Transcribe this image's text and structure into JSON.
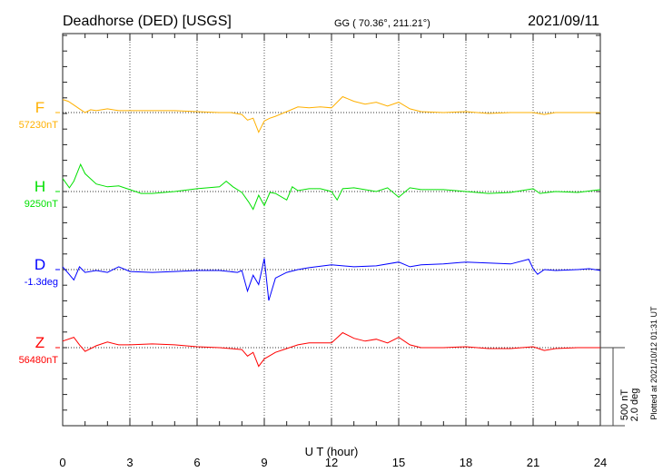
{
  "header": {
    "station": "Deadhorse (DED)  [USGS]",
    "coords": "GG ( 70.36°, 211.21°)",
    "date": "2021/09/11"
  },
  "footer": {
    "plotted": "Plotted at 2021/10/12 01:31  UT"
  },
  "chart_data": {
    "type": "line",
    "title": "Deadhorse (DED)  [USGS]",
    "xlabel": "U T (hour)",
    "xlim": [
      0,
      24
    ],
    "xticks": [
      "0",
      "3",
      "6",
      "9",
      "12",
      "15",
      "18",
      "21",
      "24"
    ],
    "grid": "vertical dotted every 3 hours",
    "scale": {
      "nT": "500 nT",
      "deg": "2.0 deg",
      "nT_value": 500
    },
    "series": [
      {
        "name": "F",
        "baseline_label": "57230nT",
        "color": "#ffb000",
        "points": [
          [
            0,
            84
          ],
          [
            0.25,
            72
          ],
          [
            0.5,
            48
          ],
          [
            0.75,
            24
          ],
          [
            1,
            0
          ],
          [
            1.25,
            18
          ],
          [
            1.5,
            12
          ],
          [
            2,
            24
          ],
          [
            2.5,
            12
          ],
          [
            3,
            12
          ],
          [
            3.5,
            12
          ],
          [
            4,
            12
          ],
          [
            5,
            12
          ],
          [
            6,
            6
          ],
          [
            7,
            0
          ],
          [
            7.5,
            0
          ],
          [
            8,
            -12
          ],
          [
            8.25,
            -48
          ],
          [
            8.5,
            -36
          ],
          [
            8.75,
            -126
          ],
          [
            9,
            -54
          ],
          [
            9.25,
            -36
          ],
          [
            9.5,
            -24
          ],
          [
            10,
            6
          ],
          [
            10.5,
            36
          ],
          [
            11,
            30
          ],
          [
            11.5,
            36
          ],
          [
            12,
            30
          ],
          [
            12.5,
            102
          ],
          [
            13,
            72
          ],
          [
            13.5,
            54
          ],
          [
            14,
            66
          ],
          [
            14.5,
            42
          ],
          [
            15,
            66
          ],
          [
            15.5,
            24
          ],
          [
            16,
            6
          ],
          [
            17,
            0
          ],
          [
            18,
            6
          ],
          [
            19,
            -6
          ],
          [
            20,
            0
          ],
          [
            21,
            0
          ],
          [
            21.5,
            -12
          ],
          [
            22,
            0
          ],
          [
            23,
            0
          ],
          [
            24,
            0
          ]
        ]
      },
      {
        "name": "H",
        "baseline_label": "9250nT",
        "color": "#00e000",
        "points": [
          [
            0,
            84
          ],
          [
            0.3,
            24
          ],
          [
            0.5,
            66
          ],
          [
            0.8,
            174
          ],
          [
            1,
            114
          ],
          [
            1.5,
            48
          ],
          [
            2,
            30
          ],
          [
            2.5,
            36
          ],
          [
            3,
            12
          ],
          [
            3.5,
            -12
          ],
          [
            4,
            -12
          ],
          [
            5,
            0
          ],
          [
            6,
            18
          ],
          [
            7,
            30
          ],
          [
            7.3,
            66
          ],
          [
            7.6,
            30
          ],
          [
            8,
            -6
          ],
          [
            8.3,
            -66
          ],
          [
            8.5,
            -114
          ],
          [
            8.75,
            -24
          ],
          [
            9,
            -90
          ],
          [
            9.25,
            -6
          ],
          [
            9.5,
            -12
          ],
          [
            10,
            -54
          ],
          [
            10.25,
            30
          ],
          [
            10.5,
            6
          ],
          [
            11,
            18
          ],
          [
            11.5,
            18
          ],
          [
            12,
            0
          ],
          [
            12.25,
            -54
          ],
          [
            12.5,
            18
          ],
          [
            13,
            24
          ],
          [
            14,
            0
          ],
          [
            14.5,
            24
          ],
          [
            15,
            -36
          ],
          [
            15.5,
            24
          ],
          [
            16,
            12
          ],
          [
            17,
            12
          ],
          [
            18,
            0
          ],
          [
            19,
            -12
          ],
          [
            20,
            -6
          ],
          [
            21,
            18
          ],
          [
            21.3,
            -12
          ],
          [
            22,
            0
          ],
          [
            23,
            -6
          ],
          [
            24,
            12
          ]
        ]
      },
      {
        "name": "D",
        "baseline_label": "-1.3deg",
        "color": "#0000ff",
        "points": [
          [
            0,
            18
          ],
          [
            0.25,
            -24
          ],
          [
            0.5,
            -66
          ],
          [
            0.75,
            18
          ],
          [
            1,
            -18
          ],
          [
            1.5,
            -6
          ],
          [
            2,
            -18
          ],
          [
            2.5,
            18
          ],
          [
            3,
            -12
          ],
          [
            4,
            -18
          ],
          [
            5,
            -12
          ],
          [
            6,
            -6
          ],
          [
            7,
            -6
          ],
          [
            7.8,
            -18
          ],
          [
            8,
            -6
          ],
          [
            8.25,
            -138
          ],
          [
            8.5,
            -36
          ],
          [
            8.75,
            -96
          ],
          [
            9,
            72
          ],
          [
            9.2,
            -198
          ],
          [
            9.5,
            -54
          ],
          [
            10,
            -18
          ],
          [
            10.5,
            0
          ],
          [
            11,
            12
          ],
          [
            12,
            30
          ],
          [
            13,
            18
          ],
          [
            14,
            24
          ],
          [
            15,
            48
          ],
          [
            15.5,
            18
          ],
          [
            16,
            30
          ],
          [
            17,
            36
          ],
          [
            18,
            48
          ],
          [
            19,
            42
          ],
          [
            20,
            36
          ],
          [
            20.8,
            66
          ],
          [
            21,
            6
          ],
          [
            21.2,
            -30
          ],
          [
            21.5,
            0
          ],
          [
            22,
            -6
          ],
          [
            23,
            0
          ],
          [
            23.5,
            6
          ],
          [
            24,
            -6
          ]
        ]
      },
      {
        "name": "Z",
        "baseline_label": "56480nT",
        "color": "#ff0000",
        "points": [
          [
            0,
            42
          ],
          [
            0.5,
            66
          ],
          [
            0.75,
            18
          ],
          [
            1,
            -24
          ],
          [
            1.5,
            12
          ],
          [
            2,
            36
          ],
          [
            2.5,
            18
          ],
          [
            3,
            18
          ],
          [
            4,
            24
          ],
          [
            5,
            18
          ],
          [
            6,
            6
          ],
          [
            7,
            0
          ],
          [
            8,
            -12
          ],
          [
            8.25,
            -54
          ],
          [
            8.5,
            -30
          ],
          [
            8.75,
            -120
          ],
          [
            9,
            -72
          ],
          [
            9.5,
            -30
          ],
          [
            10,
            -6
          ],
          [
            10.5,
            18
          ],
          [
            11,
            30
          ],
          [
            12,
            30
          ],
          [
            12.5,
            96
          ],
          [
            13,
            60
          ],
          [
            13.5,
            42
          ],
          [
            14,
            54
          ],
          [
            14.5,
            30
          ],
          [
            15,
            66
          ],
          [
            15.5,
            18
          ],
          [
            16,
            0
          ],
          [
            17,
            0
          ],
          [
            18,
            6
          ],
          [
            19,
            -6
          ],
          [
            20,
            -6
          ],
          [
            21,
            6
          ],
          [
            21.5,
            -18
          ],
          [
            22,
            -6
          ],
          [
            23,
            0
          ],
          [
            24,
            0
          ]
        ]
      }
    ]
  }
}
